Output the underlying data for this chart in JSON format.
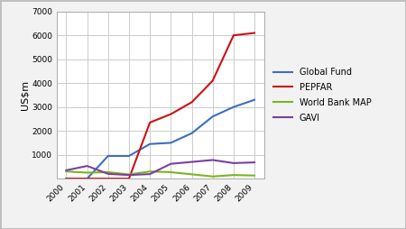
{
  "years": [
    2000,
    2001,
    2002,
    2003,
    2004,
    2005,
    2006,
    2007,
    2008,
    2009
  ],
  "global_fund": [
    0,
    0,
    950,
    950,
    1450,
    1500,
    1900,
    2600,
    3000,
    3300
  ],
  "pepfar": [
    0,
    0,
    0,
    0,
    2350,
    2700,
    3200,
    4100,
    6000,
    6100
  ],
  "world_bank_map": [
    300,
    250,
    270,
    175,
    300,
    270,
    180,
    90,
    150,
    130
  ],
  "gavi": [
    350,
    530,
    200,
    150,
    190,
    620,
    700,
    780,
    650,
    680
  ],
  "colors": {
    "global_fund": "#3c6ebf",
    "pepfar": "#cc1111",
    "world_bank_map": "#7ab520",
    "gavi": "#7b3fa0"
  },
  "legend_labels": [
    "Global Fund",
    "PEPFAR",
    "World Bank MAP",
    "GAVI"
  ],
  "ylabel": "US$m",
  "ylim": [
    0,
    7000
  ],
  "yticks": [
    0,
    1000,
    2000,
    3000,
    4000,
    5000,
    6000,
    7000
  ],
  "background_color": "#f2f2f2",
  "plot_background": "#ffffff",
  "grid_color": "#cccccc",
  "figure_border": "#c0c0c0"
}
